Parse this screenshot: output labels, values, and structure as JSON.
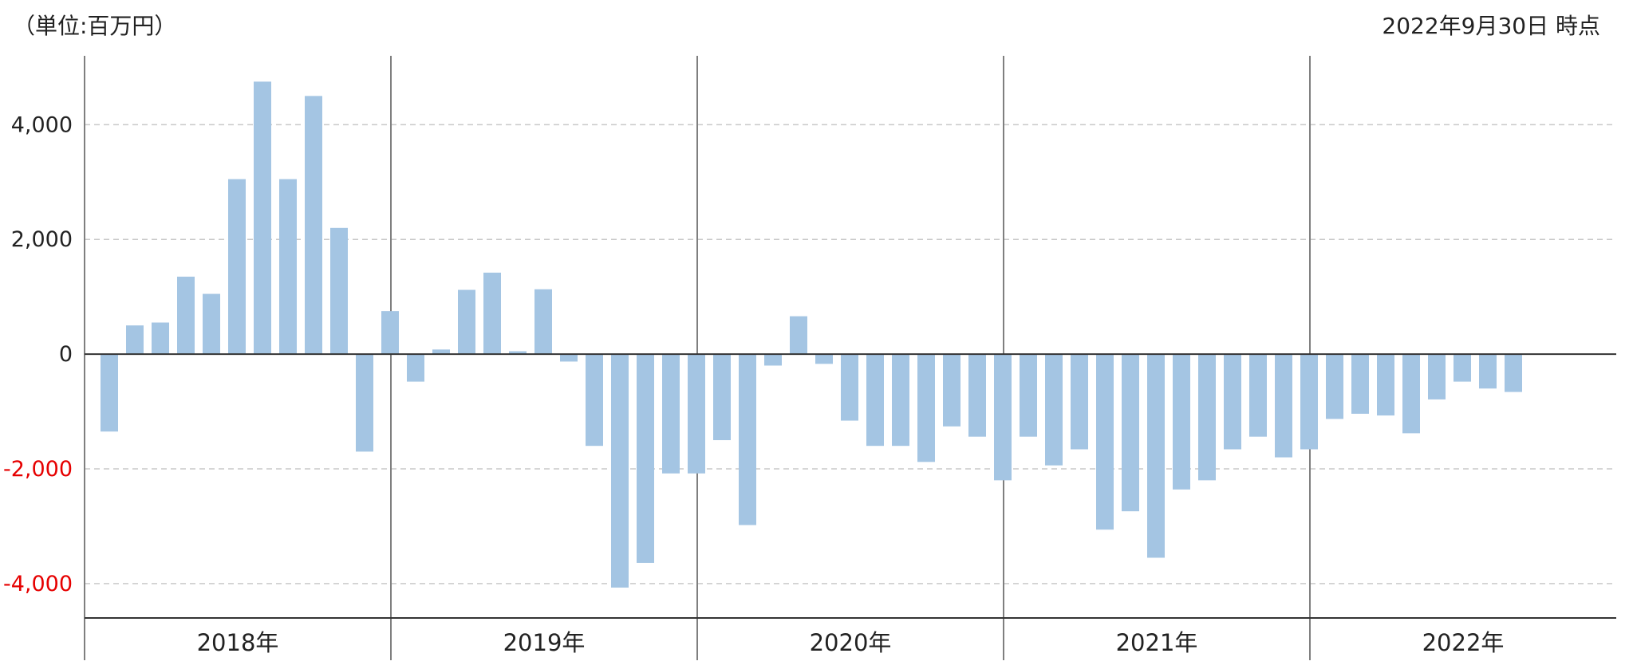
{
  "header": {
    "unit_label": "（単位:百万円）",
    "as_of_label": "2022年9月30日 時点"
  },
  "colors": {
    "bar": "#a4c5e3",
    "axis": "#333333",
    "gridline": "#c9c9c9",
    "divider": "#7f7f7f",
    "positive_tick": "#222222",
    "negative_tick": "#e60000"
  },
  "chart_data": {
    "type": "bar",
    "ylim": [
      -4600,
      5200
    ],
    "yticks": [
      4000,
      2000,
      0,
      -2000,
      -4000
    ],
    "ytick_labels": [
      "4,000",
      "2,000",
      "0",
      "-2,000",
      "-4,000"
    ],
    "grid": true,
    "groups": [
      "2018年",
      "2019年",
      "2020年",
      "2021年",
      "2022年"
    ],
    "series": [
      {
        "values": [
          [
            -1350,
            500,
            550,
            1350,
            1050,
            3050,
            4750,
            3050,
            4500,
            2200,
            -1700,
            750
          ],
          [
            -480,
            80,
            1120,
            1420,
            50,
            1130,
            -130,
            -1600,
            -4070,
            -3640,
            -2080,
            -2080
          ],
          [
            -1500,
            -2980,
            -200,
            660,
            -170,
            -1160,
            -1600,
            -1600,
            -1880,
            -1260,
            -1440,
            -2200
          ],
          [
            -1440,
            -1940,
            -1660,
            -3060,
            -2740,
            -3550,
            -2360,
            -2200,
            -1660,
            -1440,
            -1800,
            -1660
          ],
          [
            -1130,
            -1040,
            -1070,
            -1380,
            -790,
            -480,
            -600,
            -660
          ]
        ]
      }
    ]
  }
}
